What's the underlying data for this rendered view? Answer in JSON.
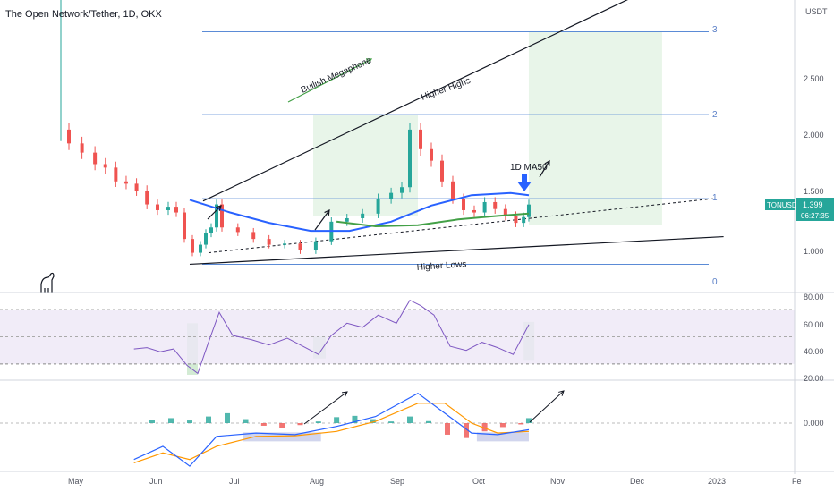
{
  "header": {
    "title": "The Open Network/Tether, 1D, OKX"
  },
  "price_axis": {
    "unit": "USDT",
    "ticks": [
      "2.500",
      "2.000",
      "1.500",
      "1.000"
    ],
    "tag_symbol": "TONUSDT",
    "tag_price": "1.399",
    "tag_countdown": "06:27:35"
  },
  "fib_levels": [
    "3",
    "2",
    "1",
    "0"
  ],
  "annotations": {
    "megaphone": "Bullish Megaphone",
    "higher_highs": "Higher Highs",
    "higher_lows": "Higher Lows",
    "ma_label": "1D MA50"
  },
  "rsi_axis": {
    "ticks": [
      "80.00",
      "60.00",
      "40.00",
      "20.00"
    ]
  },
  "macd_axis": {
    "ticks": [
      "0.000"
    ]
  },
  "time_axis": {
    "ticks": [
      "May",
      "Jun",
      "Jul",
      "Aug",
      "Sep",
      "Oct",
      "Nov",
      "Dec",
      "2023",
      "Fe"
    ]
  },
  "colors": {
    "up": "#26a69a",
    "down": "#ef5350",
    "ma_blue": "#2962ff",
    "ma_green": "#43a047",
    "rsi": "#7e57c2",
    "rsi_band": "#ede7f6",
    "fib": "#5b8bd6",
    "zone": "#e8f5e9",
    "macd_line": "#2962ff",
    "signal_line": "#ff9800",
    "price_tag": "#26a69a"
  },
  "chart_data": [
    {
      "type": "candlestick",
      "title": "The Open Network/Tether, 1D, OKX",
      "x_ticks": [
        "May",
        "Jun",
        "Jul",
        "Aug",
        "Sep",
        "Oct",
        "Nov",
        "Dec",
        "2023",
        "Fe"
      ],
      "y_ticks": [
        2.5,
        2.0,
        1.5,
        1.0
      ],
      "ylim": [
        0.7,
        3.2
      ],
      "last_price": 1.399,
      "fib_retracement": [
        {
          "label": "0",
          "price": 0.88
        },
        {
          "label": "1",
          "price": 1.45
        },
        {
          "label": "2",
          "price": 2.18
        },
        {
          "label": "3",
          "price": 2.9
        }
      ],
      "trendlines": [
        {
          "name": "Higher Highs",
          "from": [
            "Jun 20",
            1.43
          ],
          "to": [
            "Nov 30",
            3.2
          ]
        },
        {
          "name": "Higher Lows",
          "from": [
            "Jun 15",
            0.88
          ],
          "to": [
            "Jan 5",
            1.12
          ]
        }
      ],
      "closes": [
        {
          "date": "Apr 26",
          "close": 2.05
        },
        {
          "date": "Apr 30",
          "close": 1.93
        },
        {
          "date": "May 5",
          "close": 1.85
        },
        {
          "date": "May 10",
          "close": 1.75
        },
        {
          "date": "May 14",
          "close": 1.72
        },
        {
          "date": "May 18",
          "close": 1.6
        },
        {
          "date": "May 22",
          "close": 1.58
        },
        {
          "date": "May 26",
          "close": 1.52
        },
        {
          "date": "May 30",
          "close": 1.4
        },
        {
          "date": "Jun 3",
          "close": 1.35
        },
        {
          "date": "Jun 7",
          "close": 1.38
        },
        {
          "date": "Jun 10",
          "close": 1.33
        },
        {
          "date": "Jun 13",
          "close": 1.1
        },
        {
          "date": "Jun 16",
          "close": 0.98
        },
        {
          "date": "Jun 19",
          "close": 1.05
        },
        {
          "date": "Jun 21",
          "close": 1.15
        },
        {
          "date": "Jun 23",
          "close": 1.2
        },
        {
          "date": "Jun 25",
          "close": 1.4
        },
        {
          "date": "Jun 27",
          "close": 1.2
        },
        {
          "date": "Jul 3",
          "close": 1.16
        },
        {
          "date": "Jul 9",
          "close": 1.1
        },
        {
          "date": "Jul 15",
          "close": 1.05
        },
        {
          "date": "Jul 21",
          "close": 1.06
        },
        {
          "date": "Jul 27",
          "close": 1.0
        },
        {
          "date": "Aug 2",
          "close": 1.08
        },
        {
          "date": "Aug 8",
          "close": 1.25
        },
        {
          "date": "Aug 14",
          "close": 1.28
        },
        {
          "date": "Aug 20",
          "close": 1.32
        },
        {
          "date": "Aug 26",
          "close": 1.45
        },
        {
          "date": "Aug 31",
          "close": 1.5
        },
        {
          "date": "Sep 4",
          "close": 1.55
        },
        {
          "date": "Sep 7",
          "close": 2.05
        },
        {
          "date": "Sep 11",
          "close": 1.88
        },
        {
          "date": "Sep 15",
          "close": 1.78
        },
        {
          "date": "Sep 19",
          "close": 1.6
        },
        {
          "date": "Sep 23",
          "close": 1.45
        },
        {
          "date": "Sep 27",
          "close": 1.35
        },
        {
          "date": "Oct 1",
          "close": 1.33
        },
        {
          "date": "Oct 5",
          "close": 1.42
        },
        {
          "date": "Oct 9",
          "close": 1.36
        },
        {
          "date": "Oct 13",
          "close": 1.3
        },
        {
          "date": "Oct 17",
          "close": 1.24
        },
        {
          "date": "Oct 20",
          "close": 1.29
        },
        {
          "date": "Oct 22",
          "close": 1.399
        }
      ],
      "ma50": [
        {
          "date": "Jun 15",
          "value": 1.44
        },
        {
          "date": "Jun 30",
          "value": 1.33
        },
        {
          "date": "Jul 15",
          "value": 1.24
        },
        {
          "date": "Jul 31",
          "value": 1.17
        },
        {
          "date": "Aug 15",
          "value": 1.17
        },
        {
          "date": "Aug 31",
          "value": 1.25
        },
        {
          "date": "Sep 15",
          "value": 1.39
        },
        {
          "date": "Sep 30",
          "value": 1.48
        },
        {
          "date": "Oct 15",
          "value": 1.5
        },
        {
          "date": "Oct 22",
          "value": 1.48
        }
      ],
      "green_ma": [
        {
          "date": "Aug 10",
          "value": 1.25
        },
        {
          "date": "Aug 25",
          "value": 1.21
        },
        {
          "date": "Sep 10",
          "value": 1.22
        },
        {
          "date": "Sep 25",
          "value": 1.27
        },
        {
          "date": "Oct 10",
          "value": 1.3
        },
        {
          "date": "Oct 22",
          "value": 1.32
        }
      ]
    },
    {
      "type": "line",
      "name": "RSI",
      "y_ticks": [
        80,
        60,
        40,
        20
      ],
      "ylim": [
        20,
        82
      ],
      "band": [
        30,
        70
      ],
      "values": [
        {
          "date": "May 25",
          "value": 41
        },
        {
          "date": "May 30",
          "value": 42
        },
        {
          "date": "Jun 4",
          "value": 39
        },
        {
          "date": "Jun 9",
          "value": 41
        },
        {
          "date": "Jun 14",
          "value": 29
        },
        {
          "date": "Jun 18",
          "value": 23
        },
        {
          "date": "Jun 22",
          "value": 46
        },
        {
          "date": "Jun 26",
          "value": 68
        },
        {
          "date": "Jul 1",
          "value": 51
        },
        {
          "date": "Jul 8",
          "value": 48
        },
        {
          "date": "Jul 15",
          "value": 44
        },
        {
          "date": "Jul 22",
          "value": 49
        },
        {
          "date": "Jul 29",
          "value": 42
        },
        {
          "date": "Aug 3",
          "value": 37
        },
        {
          "date": "Aug 8",
          "value": 51
        },
        {
          "date": "Aug 14",
          "value": 60
        },
        {
          "date": "Aug 20",
          "value": 57
        },
        {
          "date": "Aug 26",
          "value": 66
        },
        {
          "date": "Sep 2",
          "value": 60
        },
        {
          "date": "Sep 7",
          "value": 77
        },
        {
          "date": "Sep 11",
          "value": 73
        },
        {
          "date": "Sep 16",
          "value": 66
        },
        {
          "date": "Sep 22",
          "value": 43
        },
        {
          "date": "Sep 28",
          "value": 40
        },
        {
          "date": "Oct 4",
          "value": 46
        },
        {
          "date": "Oct 10",
          "value": 42
        },
        {
          "date": "Oct 16",
          "value": 37
        },
        {
          "date": "Oct 22",
          "value": 59
        }
      ]
    },
    {
      "type": "bar",
      "name": "MACD",
      "y_ticks": [
        0.0
      ],
      "ylim": [
        -0.17,
        0.13
      ],
      "histogram": [
        {
          "date": "Jun 1",
          "value": 0.01
        },
        {
          "date": "Jun 8",
          "value": 0.015
        },
        {
          "date": "Jun 15",
          "value": 0.008
        },
        {
          "date": "Jun 22",
          "value": 0.02
        },
        {
          "date": "Jun 29",
          "value": 0.03
        },
        {
          "date": "Jul 6",
          "value": 0.012
        },
        {
          "date": "Jul 13",
          "value": -0.008
        },
        {
          "date": "Jul 20",
          "value": -0.015
        },
        {
          "date": "Jul 27",
          "value": -0.006
        },
        {
          "date": "Aug 3",
          "value": 0.005
        },
        {
          "date": "Aug 10",
          "value": 0.018
        },
        {
          "date": "Aug 17",
          "value": 0.022
        },
        {
          "date": "Aug 24",
          "value": 0.012
        },
        {
          "date": "Aug 31",
          "value": 0.005
        },
        {
          "date": "Sep 7",
          "value": 0.02
        },
        {
          "date": "Sep 14",
          "value": 0.006
        },
        {
          "date": "Sep 21",
          "value": -0.035
        },
        {
          "date": "Sep 28",
          "value": -0.045
        },
        {
          "date": "Oct 5",
          "value": -0.025
        },
        {
          "date": "Oct 12",
          "value": -0.012
        },
        {
          "date": "Oct 19",
          "value": -0.004
        },
        {
          "date": "Oct 22",
          "value": 0.015
        }
      ],
      "macd_line": [
        {
          "date": "May 25",
          "value": -0.11
        },
        {
          "date": "Jun 5",
          "value": -0.07
        },
        {
          "date": "Jun 15",
          "value": -0.13
        },
        {
          "date": "Jun 25",
          "value": -0.04
        },
        {
          "date": "Jul 10",
          "value": -0.03
        },
        {
          "date": "Jul 25",
          "value": -0.035
        },
        {
          "date": "Aug 10",
          "value": -0.01
        },
        {
          "date": "Aug 25",
          "value": 0.02
        },
        {
          "date": "Sep 10",
          "value": 0.09
        },
        {
          "date": "Sep 20",
          "value": 0.03
        },
        {
          "date": "Sep 30",
          "value": -0.03
        },
        {
          "date": "Oct 10",
          "value": -0.035
        },
        {
          "date": "Oct 22",
          "value": -0.02
        }
      ],
      "signal_line": [
        {
          "date": "May 25",
          "value": -0.12
        },
        {
          "date": "Jun 5",
          "value": -0.09
        },
        {
          "date": "Jun 15",
          "value": -0.11
        },
        {
          "date": "Jun 25",
          "value": -0.07
        },
        {
          "date": "Jul 10",
          "value": -0.04
        },
        {
          "date": "Jul 25",
          "value": -0.038
        },
        {
          "date": "Aug 10",
          "value": -0.025
        },
        {
          "date": "Aug 25",
          "value": 0.005
        },
        {
          "date": "Sep 10",
          "value": 0.06
        },
        {
          "date": "Sep 20",
          "value": 0.06
        },
        {
          "date": "Sep 30",
          "value": 0.0
        },
        {
          "date": "Oct 10",
          "value": -0.03
        },
        {
          "date": "Oct 22",
          "value": -0.025
        }
      ]
    }
  ]
}
